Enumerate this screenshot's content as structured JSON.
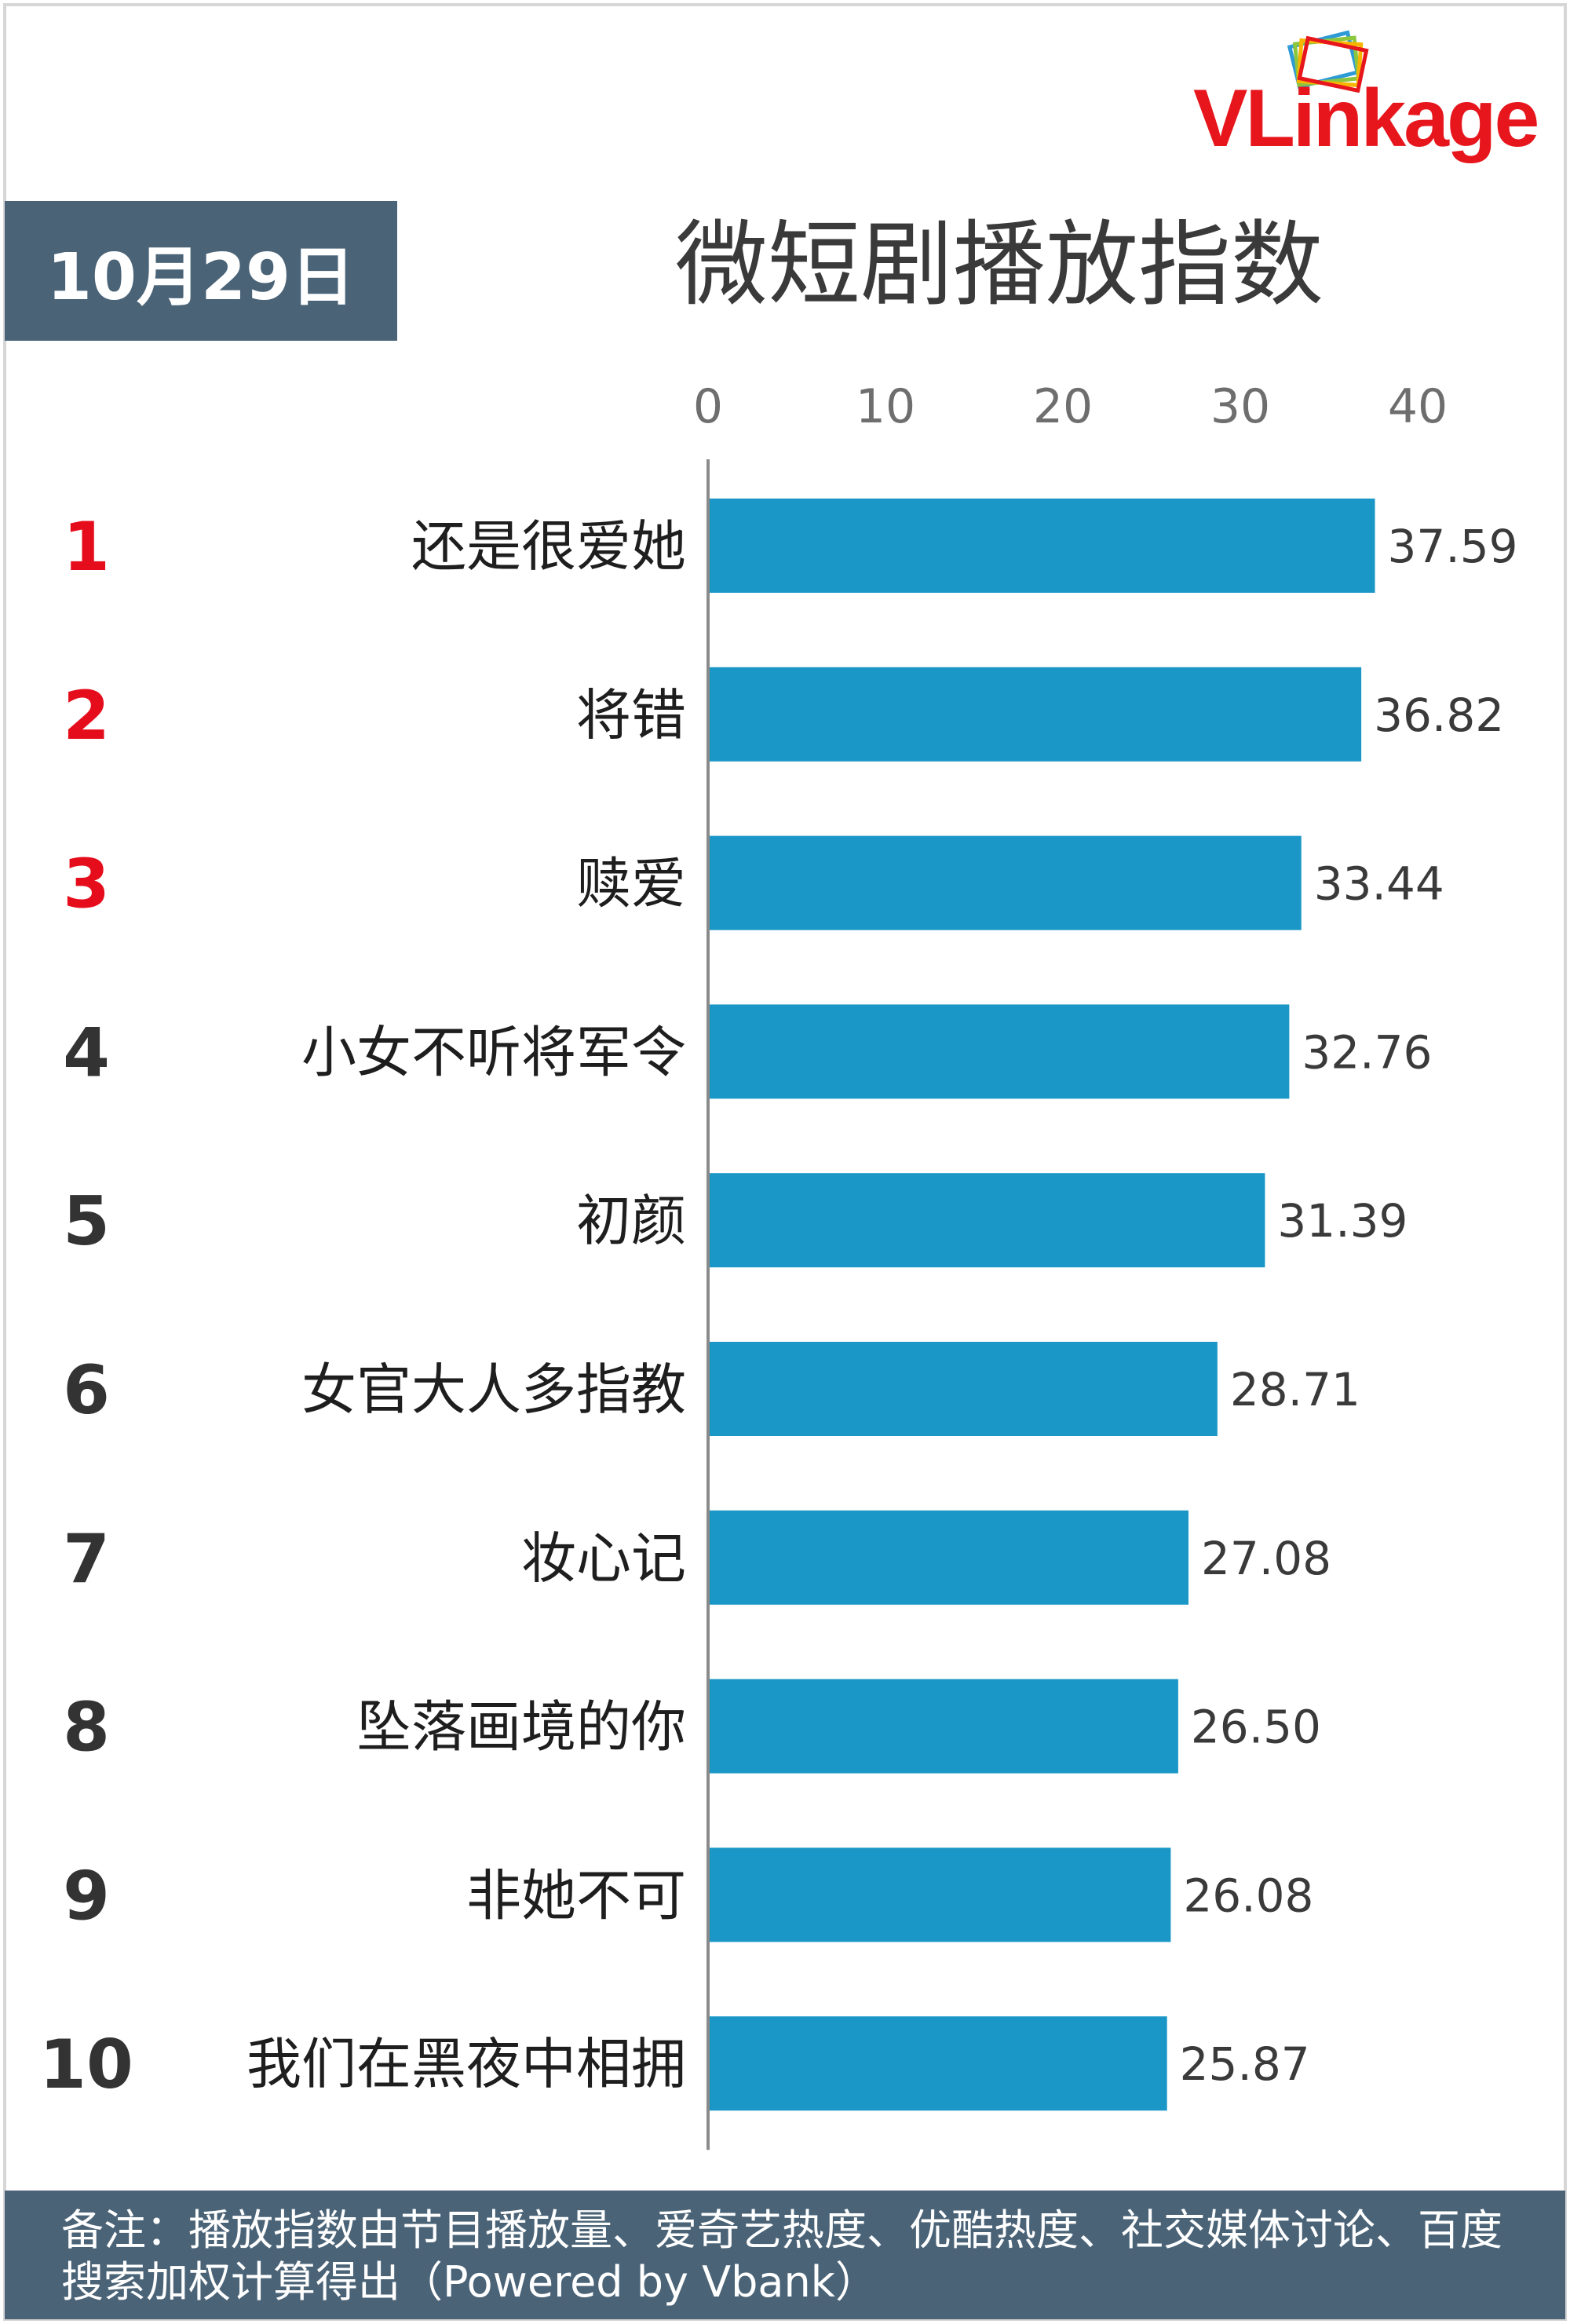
{
  "brand": {
    "logo_text": "VLinkage",
    "brand_color": "#e6161c"
  },
  "header": {
    "date": "10月29日",
    "badge_color": "#4a6377"
  },
  "chart_data": {
    "type": "bar",
    "orientation": "horizontal",
    "title": "微短剧播放指数",
    "xlim": [
      0,
      40
    ],
    "ticks": [
      0,
      10,
      20,
      30,
      40
    ],
    "bar_color": "#1a97c6",
    "top_rank_color": "#e50d1c",
    "rank_color": "#333333",
    "grid": false,
    "ranks": [
      "1",
      "2",
      "3",
      "4",
      "5",
      "6",
      "7",
      "8",
      "9",
      "10"
    ],
    "categories": [
      "还是很爱她",
      "将错",
      "赎爱",
      "小女不听将军令",
      "初颜",
      "女官大人多指教",
      "妆心记",
      "坠落画境的你",
      "非她不可",
      "我们在黑夜中相拥"
    ],
    "values": [
      37.59,
      36.82,
      33.44,
      32.76,
      31.39,
      28.71,
      27.08,
      26.5,
      26.08,
      25.87
    ],
    "value_labels": [
      "37.59",
      "36.82",
      "33.44",
      "32.76",
      "31.39",
      "28.71",
      "27.08",
      "26.50",
      "26.08",
      "25.87"
    ]
  },
  "footer": {
    "note": "备注：播放指数由节目播放量、爱奇艺热度、优酷热度、社交媒体讨论、百度搜索加权计算得出（Powered by Vbank）"
  }
}
